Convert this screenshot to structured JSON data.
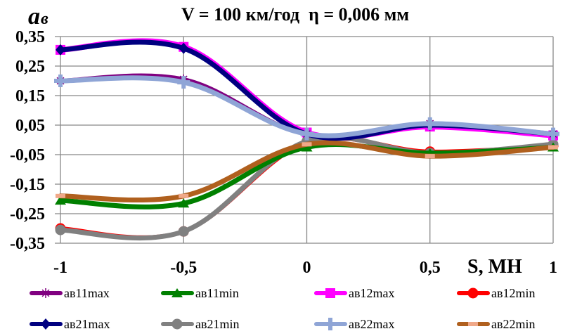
{
  "chart_data": {
    "type": "line",
    "title": "V = 100 км/год  η = 0,006 мм",
    "ylabel_main": "a",
    "ylabel_sub": "в",
    "xlabel": "S, МН",
    "x": [
      -1,
      -0.5,
      0,
      0.5,
      1
    ],
    "xlim": [
      -1,
      1
    ],
    "ylim": [
      -0.35,
      0.35
    ],
    "x_ticks": [
      "-1",
      "-0,5",
      "0",
      "0,5",
      "1"
    ],
    "y_ticks": [
      "0,35",
      "0,25",
      "0,15",
      "0,05",
      "-0,05",
      "-0,15",
      "-0,25",
      "-0,35"
    ],
    "y_tick_values": [
      0.35,
      0.25,
      0.15,
      0.05,
      -0.05,
      -0.15,
      -0.25,
      -0.35
    ],
    "grid": true,
    "legend_position": "bottom",
    "series": [
      {
        "name": "ав11max",
        "color": "#800080",
        "marker": "asterisk",
        "values": [
          0.2,
          0.205,
          0.02,
          0.055,
          0.02
        ]
      },
      {
        "name": "ав11min",
        "color": "#008000",
        "marker": "triangle",
        "values": [
          -0.205,
          -0.215,
          -0.025,
          -0.045,
          -0.025
        ]
      },
      {
        "name": "ав12max",
        "color": "#FF00FF",
        "marker": "square",
        "values": [
          0.305,
          0.315,
          0.025,
          0.045,
          0.015
        ]
      },
      {
        "name": "ав12min",
        "color": "#FF0000",
        "marker": "circle",
        "values": [
          -0.3,
          -0.31,
          -0.01,
          -0.04,
          -0.02
        ]
      },
      {
        "name": "ав21max",
        "color": "#000080",
        "marker": "diamond",
        "values": [
          0.305,
          0.31,
          0.02,
          0.05,
          0.02
        ]
      },
      {
        "name": "ав21min",
        "color": "#808080",
        "marker": "circle",
        "values": [
          -0.305,
          -0.31,
          -0.005,
          -0.045,
          -0.015
        ]
      },
      {
        "name": "ав22max",
        "color": "#8FA5D6",
        "marker": "plus",
        "values": [
          0.2,
          0.195,
          0.02,
          0.055,
          0.02
        ]
      },
      {
        "name": "ав22min",
        "color": "#B0601E",
        "marker": "dash",
        "values": [
          -0.19,
          -0.19,
          -0.015,
          -0.055,
          -0.025
        ]
      }
    ]
  }
}
